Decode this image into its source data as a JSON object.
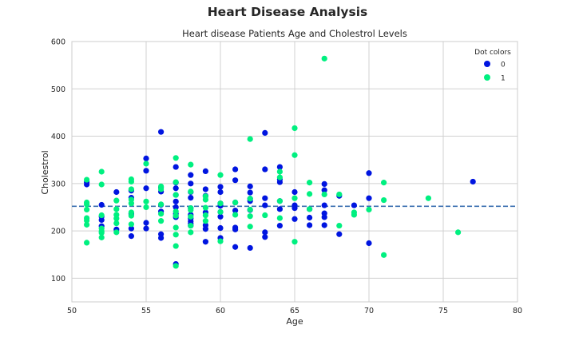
{
  "suptitle": "Heart Disease Analysis",
  "chart_data": {
    "type": "scatter",
    "title": "Heart disease Patients Age and Cholestrol Levels",
    "xlabel": "Age",
    "ylabel": "Cholestrol",
    "xlim": [
      50,
      80
    ],
    "ylim": [
      50,
      600
    ],
    "xticks": [
      50,
      55,
      60,
      65,
      70,
      75,
      80
    ],
    "yticks": [
      100,
      200,
      300,
      400,
      500,
      600
    ],
    "grid": true,
    "legend": {
      "title": "Dot colors",
      "placement": "top-right"
    },
    "mean_line": {
      "y": 252,
      "style": "dashed",
      "color": "#3a6fb0"
    },
    "series": [
      {
        "name": "0",
        "color": "#0015e0",
        "points": [
          [
            51,
            298
          ],
          [
            51,
            303
          ],
          [
            52,
            230
          ],
          [
            52,
            255
          ],
          [
            52,
            210
          ],
          [
            52,
            223
          ],
          [
            53,
            282
          ],
          [
            53,
            203
          ],
          [
            54,
            189
          ],
          [
            54,
            205
          ],
          [
            54,
            236
          ],
          [
            54,
            270
          ],
          [
            54,
            285
          ],
          [
            55,
            353
          ],
          [
            55,
            327
          ],
          [
            55,
            290
          ],
          [
            55,
            217
          ],
          [
            55,
            205
          ],
          [
            56,
            409
          ],
          [
            56,
            292
          ],
          [
            56,
            283
          ],
          [
            56,
            255
          ],
          [
            56,
            241
          ],
          [
            56,
            193
          ],
          [
            56,
            185
          ],
          [
            57,
            335
          ],
          [
            57,
            302
          ],
          [
            57,
            290
          ],
          [
            57,
            276
          ],
          [
            57,
            262
          ],
          [
            57,
            250
          ],
          [
            57,
            236
          ],
          [
            57,
            229
          ],
          [
            57,
            130
          ],
          [
            58,
            318
          ],
          [
            58,
            300
          ],
          [
            58,
            282
          ],
          [
            58,
            270
          ],
          [
            58,
            248
          ],
          [
            58,
            234
          ],
          [
            58,
            226
          ],
          [
            58,
            220
          ],
          [
            58,
            215
          ],
          [
            58,
            211
          ],
          [
            59,
            326
          ],
          [
            59,
            288
          ],
          [
            59,
            274
          ],
          [
            59,
            239
          ],
          [
            59,
            212
          ],
          [
            59,
            204
          ],
          [
            59,
            177
          ],
          [
            60,
            293
          ],
          [
            60,
            282
          ],
          [
            60,
            258
          ],
          [
            60,
            253
          ],
          [
            60,
            240
          ],
          [
            60,
            230
          ],
          [
            60,
            206
          ],
          [
            60,
            185
          ],
          [
            61,
            330
          ],
          [
            61,
            307
          ],
          [
            61,
            260
          ],
          [
            61,
            243
          ],
          [
            61,
            207
          ],
          [
            61,
            203
          ],
          [
            61,
            166
          ],
          [
            62,
            294
          ],
          [
            62,
            281
          ],
          [
            62,
            268
          ],
          [
            62,
            263
          ],
          [
            62,
            244
          ],
          [
            62,
            164
          ],
          [
            63,
            407
          ],
          [
            63,
            330
          ],
          [
            63,
            269
          ],
          [
            63,
            254
          ],
          [
            63,
            197
          ],
          [
            63,
            187
          ],
          [
            64,
            335
          ],
          [
            64,
            309
          ],
          [
            64,
            303
          ],
          [
            64,
            263
          ],
          [
            64,
            246
          ],
          [
            64,
            211
          ],
          [
            65,
            282
          ],
          [
            65,
            254
          ],
          [
            65,
            248
          ],
          [
            65,
            225
          ],
          [
            66,
            246
          ],
          [
            66,
            228
          ],
          [
            66,
            212
          ],
          [
            67,
            299
          ],
          [
            67,
            286
          ],
          [
            67,
            254
          ],
          [
            67,
            237
          ],
          [
            67,
            229
          ],
          [
            67,
            212
          ],
          [
            68,
            274
          ],
          [
            68,
            193
          ],
          [
            69,
            254
          ],
          [
            70,
            322
          ],
          [
            70,
            269
          ],
          [
            70,
            174
          ],
          [
            77,
            304
          ]
        ]
      },
      {
        "name": "1",
        "color": "#00f080",
        "points": [
          [
            51,
            308
          ],
          [
            51,
            260
          ],
          [
            51,
            256
          ],
          [
            51,
            245
          ],
          [
            51,
            227
          ],
          [
            51,
            222
          ],
          [
            51,
            213
          ],
          [
            51,
            175
          ],
          [
            52,
            325
          ],
          [
            52,
            298
          ],
          [
            52,
            233
          ],
          [
            52,
            205
          ],
          [
            52,
            199
          ],
          [
            52,
            196
          ],
          [
            52,
            186
          ],
          [
            53,
            264
          ],
          [
            53,
            246
          ],
          [
            53,
            234
          ],
          [
            53,
            226
          ],
          [
            53,
            216
          ],
          [
            53,
            197
          ],
          [
            54,
            309
          ],
          [
            54,
            304
          ],
          [
            54,
            288
          ],
          [
            54,
            266
          ],
          [
            54,
            258
          ],
          [
            54,
            239
          ],
          [
            54,
            232
          ],
          [
            54,
            214
          ],
          [
            55,
            342
          ],
          [
            55,
            262
          ],
          [
            55,
            250
          ],
          [
            56,
            294
          ],
          [
            56,
            288
          ],
          [
            56,
            256
          ],
          [
            56,
            236
          ],
          [
            56,
            221
          ],
          [
            57,
            354
          ],
          [
            57,
            303
          ],
          [
            57,
            276
          ],
          [
            57,
            241
          ],
          [
            57,
            232
          ],
          [
            57,
            207
          ],
          [
            57,
            192
          ],
          [
            57,
            168
          ],
          [
            57,
            126
          ],
          [
            58,
            340
          ],
          [
            58,
            283
          ],
          [
            58,
            248
          ],
          [
            58,
            244
          ],
          [
            58,
            230
          ],
          [
            58,
            211
          ],
          [
            58,
            197
          ],
          [
            59,
            273
          ],
          [
            59,
            266
          ],
          [
            59,
            249
          ],
          [
            59,
            233
          ],
          [
            59,
            221
          ],
          [
            60,
            318
          ],
          [
            60,
            258
          ],
          [
            60,
            240
          ],
          [
            60,
            178
          ],
          [
            61,
            260
          ],
          [
            61,
            234
          ],
          [
            62,
            394
          ],
          [
            62,
            268
          ],
          [
            62,
            245
          ],
          [
            62,
            231
          ],
          [
            62,
            209
          ],
          [
            63,
            233
          ],
          [
            64,
            325
          ],
          [
            64,
            313
          ],
          [
            64,
            263
          ],
          [
            64,
            227
          ],
          [
            65,
            417
          ],
          [
            65,
            360
          ],
          [
            65,
            269
          ],
          [
            65,
            177
          ],
          [
            66,
            302
          ],
          [
            66,
            278
          ],
          [
            66,
            246
          ],
          [
            67,
            564
          ],
          [
            67,
            277
          ],
          [
            68,
            277
          ],
          [
            68,
            211
          ],
          [
            69,
            239
          ],
          [
            69,
            234
          ],
          [
            70,
            245
          ],
          [
            71,
            302
          ],
          [
            71,
            265
          ],
          [
            71,
            149
          ],
          [
            74,
            269
          ],
          [
            76,
            197
          ]
        ]
      }
    ]
  }
}
